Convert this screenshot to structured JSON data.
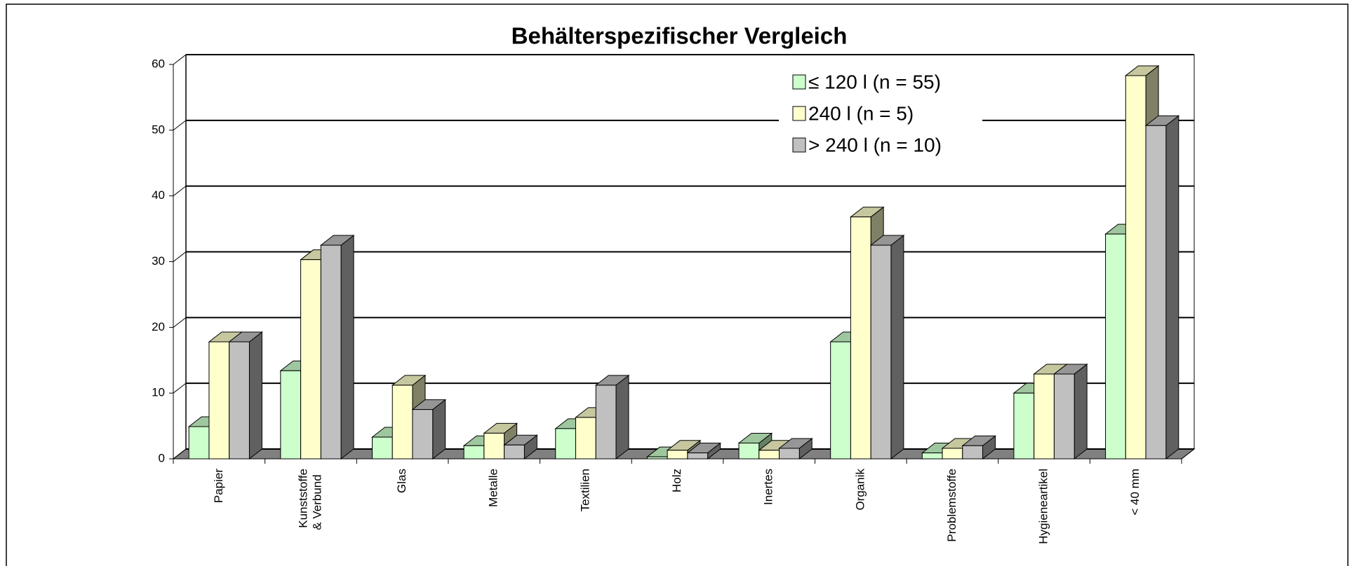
{
  "chart_data": {
    "type": "bar3d",
    "title": "Behälterspezifischer Vergleich",
    "categories": [
      "Papier",
      [
        "Kunststoffe",
        "& Verbund"
      ],
      "Glas",
      "Metalle",
      "Textilien",
      "Holz",
      "Inertes",
      "Organik",
      "Problemstoffe",
      "Hygieneartikel",
      "< 40 mm"
    ],
    "series": [
      {
        "name": "≤ 120 l (n = 55)",
        "color": "#ccffcc",
        "values": [
          4.9,
          13.4,
          3.3,
          2.0,
          4.6,
          0.3,
          2.4,
          17.8,
          0.9,
          10.0,
          34.2
        ]
      },
      {
        "name": "240 l (n = 5)",
        "color": "#ffffcc",
        "values": [
          17.8,
          30.3,
          11.2,
          3.9,
          6.3,
          1.3,
          1.3,
          36.8,
          1.6,
          12.9,
          58.3
        ]
      },
      {
        "name": "> 240 l (n = 10)",
        "color": "#c0c0c0",
        "values": [
          17.8,
          32.5,
          7.5,
          2.1,
          11.2,
          0.9,
          1.6,
          32.5,
          2.0,
          12.9,
          50.7
        ]
      }
    ],
    "ylim": [
      0,
      60
    ],
    "yticks": [
      0,
      10,
      20,
      30,
      40,
      50,
      60
    ],
    "grid": true,
    "legend": "top-right"
  }
}
